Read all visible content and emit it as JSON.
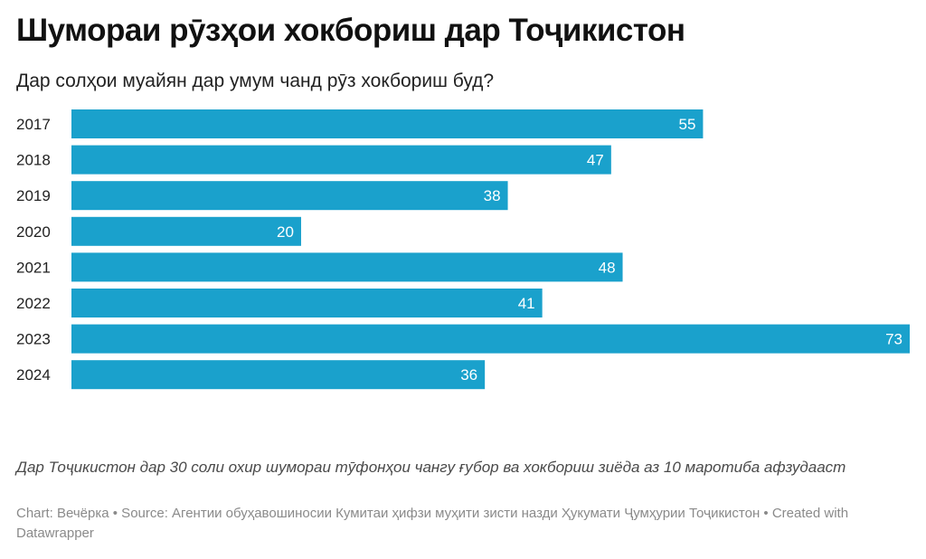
{
  "title": "Шумораи рӯзҳои хокбориш дар Тоҷикистон",
  "subtitle": "Дар солҳои муайян дар умум чанд рӯз хокбориш буд?",
  "note": "Дар Тоҷикистон дар 30 соли охир шумораи тӯфонҳои чангу ғубор ва хокбориш зиёда аз 10 маротиба афзудааст",
  "footer": "Chart: Вечёрка • Source: Агентии обуҳавошиносии Кумитаи ҳифзи муҳити зисти назди Ҳукумати Ҷумҳурии Тоҷикистон • Created with Datawrapper",
  "colors": {
    "bar": "#1aa1cc",
    "value_label": "#ffffff"
  },
  "chart_data": {
    "type": "bar",
    "orientation": "horizontal",
    "title": "Шумораи рӯзҳои хокбориш дар Тоҷикистон",
    "subtitle": "Дар солҳои муайян дар умум чанд рӯз хокбориш буд?",
    "categories": [
      "2017",
      "2018",
      "2019",
      "2020",
      "2021",
      "2022",
      "2023",
      "2024"
    ],
    "values": [
      55,
      47,
      38,
      20,
      48,
      41,
      73,
      36
    ],
    "xlim": [
      0,
      73
    ],
    "grid": false,
    "data_labels": true
  }
}
